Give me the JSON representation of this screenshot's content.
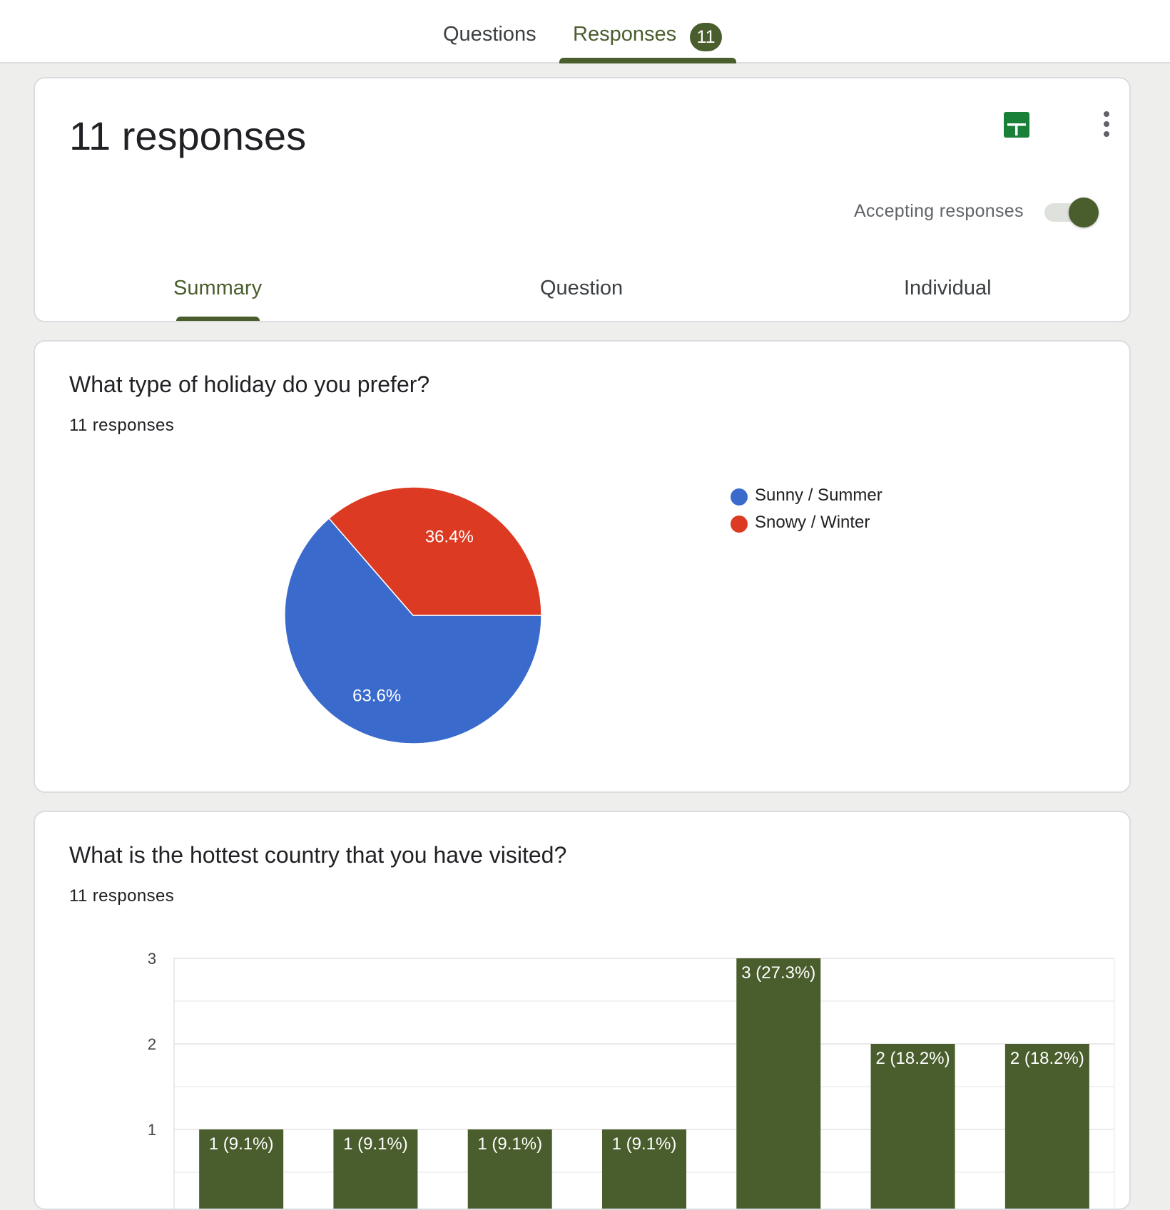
{
  "top_tabs": {
    "questions_label": "Questions",
    "responses_label": "Responses",
    "responses_badge": "11"
  },
  "header": {
    "title": "11 responses",
    "accepting_label": "Accepting responses",
    "accepting_on": true,
    "sub_tabs": {
      "summary": "Summary",
      "question": "Question",
      "individual": "Individual"
    }
  },
  "questions": [
    {
      "title": "What type of holiday do you prefer?",
      "response_count": "11 responses"
    },
    {
      "title": "What is the hottest country that you have visited?",
      "response_count": "11 responses"
    }
  ],
  "colors": {
    "accent": "#4a5d2d",
    "sheets_green": "#188038",
    "pie_blue": "#3a6bcc",
    "pie_red": "#dc3a22"
  },
  "chart_data": [
    {
      "type": "pie",
      "categories": [
        "Sunny / Summer",
        "Snowy / Winter"
      ],
      "values": [
        7,
        4
      ],
      "labels": [
        "63.6%",
        "36.4%"
      ],
      "colors": [
        "#3a6bcc",
        "#dc3a22"
      ],
      "legend_position": "right"
    },
    {
      "type": "bar",
      "categories": [
        "",
        "",
        "",
        "",
        "",
        "",
        ""
      ],
      "values": [
        1,
        1,
        1,
        1,
        3,
        2,
        2
      ],
      "labels": [
        "1 (9.1%)",
        "1 (9.1%)",
        "1 (9.1%)",
        "1 (9.1%)",
        "3 (27.3%)",
        "2 (18.2%)",
        "2 (18.2%)"
      ],
      "yticks": [
        "1",
        "2",
        "3"
      ],
      "ylim": [
        0,
        3
      ],
      "grid": true,
      "color": "#4a5d2d"
    }
  ]
}
